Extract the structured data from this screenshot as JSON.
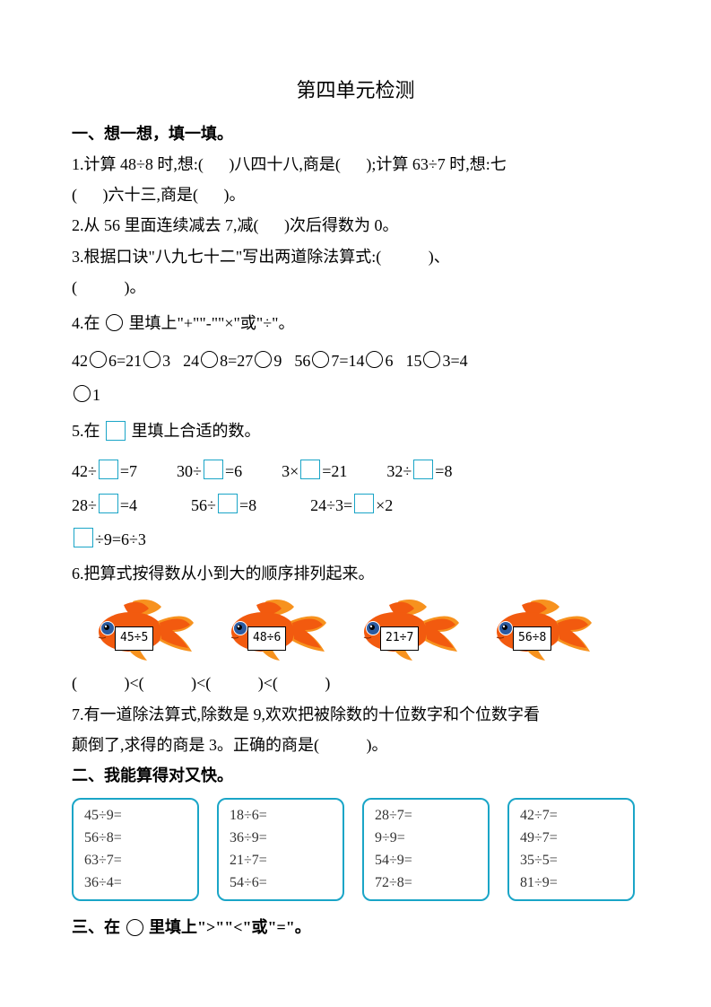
{
  "title": "第四单元检测",
  "sections": {
    "s1": {
      "header": "一、想一想，填一填。",
      "q1a": "1.计算 48÷8 时,想:(",
      "q1b": ")八四十八,商是(",
      "q1c": ");计算 63÷7 时,想:七",
      "q1d": "(",
      "q1e": ")六十三,商是(",
      "q1f": ")。",
      "q2a": "2.从 56 里面连续减去 7,减(",
      "q2b": ")次后得数为 0。",
      "q3a": "3.根据口诀\"八九七十二\"写出两道除法算式:(",
      "q3b": ")、",
      "q3c": "(",
      "q3d": ")。",
      "q4a": "4.在",
      "q4b": "里填上\"+\"\"-\"\"×\"或\"÷\"。",
      "q4_groups": [
        [
          "42",
          "6=21",
          "3"
        ],
        [
          "24",
          "8=27",
          "9"
        ],
        [
          "56",
          "7=14",
          "6"
        ],
        [
          "15",
          "3=4"
        ]
      ],
      "q4_tail": "1",
      "q5a": "5.在",
      "q5b": "里填上合适的数。",
      "q5_row1": [
        [
          "42÷",
          "=7"
        ],
        [
          "30÷",
          "=6"
        ],
        [
          "3×",
          "=21"
        ],
        [
          "32÷",
          "=8"
        ]
      ],
      "q5_row2": [
        [
          "28÷",
          "=4"
        ],
        [
          "56÷",
          "=8"
        ],
        [
          "24÷3=",
          "×2"
        ]
      ],
      "q5_row3_pre": "",
      "q5_row3_post": "÷9=6÷3",
      "q6": "6.把算式按得数从小到大的顺序排列起来。",
      "fish_labels": [
        "45÷5",
        "48÷6",
        "21÷7",
        "56÷8"
      ],
      "q6_ans_a": "(",
      "q6_ans_b": ")<(",
      "q6_ans_c": ")<(",
      "q6_ans_d": ")<(",
      "q6_ans_e": ")",
      "q7a": "7.有一道除法算式,除数是 9,欢欢把被除数的十位数字和个位数字看",
      "q7b": "颠倒了,求得的商是 3。正确的商是(",
      "q7c": ")。"
    },
    "s2": {
      "header": "二、我能算得对又快。",
      "boxes": [
        [
          "45÷9=",
          "56÷8=",
          "63÷7=",
          "36÷4="
        ],
        [
          "18÷6=",
          "36÷9=",
          "21÷7=",
          "54÷6="
        ],
        [
          "28÷7=",
          "9÷9=",
          "54÷9=",
          "72÷8="
        ],
        [
          "42÷7=",
          "49÷7=",
          "35÷5=",
          "81÷9="
        ]
      ]
    },
    "s3": {
      "header": "三、在",
      "header2": "里填上\">\"\"<\"或\"=\"。"
    }
  },
  "colors": {
    "box_border": "#1aa5c7",
    "fish_body": "#f25a0f",
    "fish_fin": "#f7921e",
    "fish_yellow": "#fbc531",
    "fish_eye": "#2a5aa0"
  }
}
